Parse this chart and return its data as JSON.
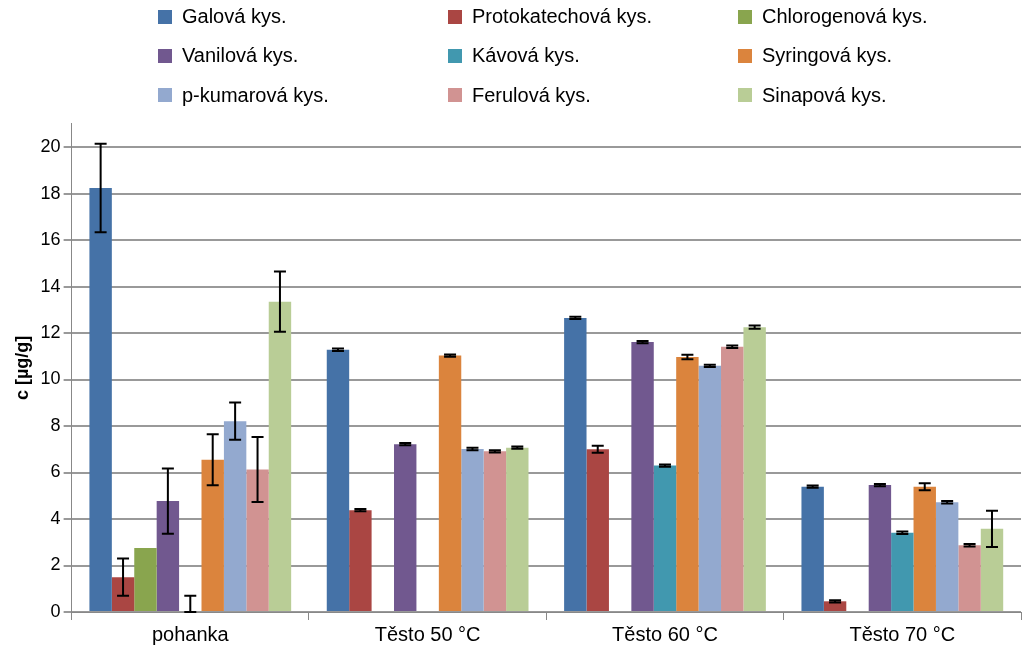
{
  "chart_data": {
    "type": "bar",
    "ylabel": "c [µg/g]",
    "categories": [
      "pohanka",
      "Těsto 50 °C",
      "Těsto 60 °C",
      "Těsto 70 °C"
    ],
    "ylim": [
      0,
      21
    ],
    "yticks": [
      0,
      2,
      4,
      6,
      8,
      10,
      12,
      14,
      16,
      18,
      20
    ],
    "grid": "y",
    "legend": "top",
    "series": [
      {
        "name": "Galová kys.",
        "color": "#4572a7",
        "values": [
          18.24,
          11.28,
          12.65,
          5.39
        ],
        "errors": [
          1.9,
          0.05,
          0.05,
          0.05
        ]
      },
      {
        "name": "Protokatechová kys.",
        "color": "#aa4643",
        "values": [
          1.5,
          4.38,
          7.0,
          0.46
        ],
        "errors": [
          0.8,
          0.05,
          0.15,
          0.05
        ]
      },
      {
        "name": "Chlorogenová kys.",
        "color": "#89a54e",
        "values": [
          2.75,
          0,
          0,
          0
        ],
        "errors": [
          null,
          null,
          null,
          null
        ]
      },
      {
        "name": "Vanilová kys.",
        "color": "#71588f",
        "values": [
          4.77,
          7.22,
          11.61,
          5.46
        ],
        "errors": [
          1.4,
          0.05,
          0.05,
          0.05
        ]
      },
      {
        "name": "Kávová kys.",
        "color": "#4198af",
        "values": [
          0,
          0,
          6.3,
          3.41
        ],
        "errors": [
          [
            0,
            0.7
          ],
          null,
          0.05,
          0.05
        ]
      },
      {
        "name": "Syringová kys.",
        "color": "#db843d",
        "values": [
          6.55,
          11.03,
          10.97,
          5.39
        ],
        "errors": [
          1.1,
          0.05,
          0.1,
          0.15
        ]
      },
      {
        "name": "p-kumarová kys.",
        "color": "#93a9cf",
        "values": [
          8.21,
          7.01,
          10.59,
          4.72
        ],
        "errors": [
          0.8,
          0.05,
          0.05,
          0.05
        ]
      },
      {
        "name": "Ferulová kys.",
        "color": "#d19392",
        "values": [
          6.13,
          6.91,
          11.41,
          2.87
        ],
        "errors": [
          1.4,
          0.05,
          0.05,
          0.05
        ]
      },
      {
        "name": "Sinapová kys.",
        "color": "#b9cd96",
        "values": [
          13.35,
          7.07,
          12.25,
          3.58
        ],
        "errors": [
          1.3,
          0.05,
          0.07,
          0.78
        ]
      }
    ]
  }
}
